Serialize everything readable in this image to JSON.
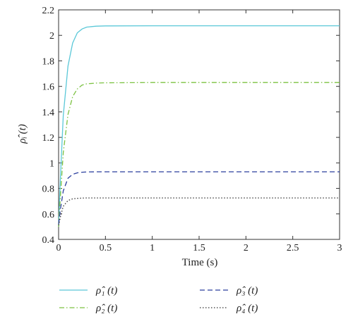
{
  "chart_data": {
    "type": "line",
    "xlabel": "Time (s)",
    "ylabel": "ρ̂ᵢ (t)",
    "xlim": [
      0,
      3
    ],
    "ylim": [
      0.4,
      2.2
    ],
    "xticks": [
      0,
      0.5,
      1,
      1.5,
      2,
      2.5,
      3
    ],
    "xtick_labels": [
      "0",
      "0.5",
      "1",
      "1.5",
      "2",
      "2.5",
      "3"
    ],
    "yticks": [
      0.4,
      0.6,
      0.8,
      1.0,
      1.2,
      1.4,
      1.6,
      1.8,
      2.0,
      2.2
    ],
    "ytick_labels": [
      "0.4",
      "0.6",
      "0.8",
      "1",
      "1.2",
      "1.4",
      "1.6",
      "1.8",
      "2",
      "2.2"
    ],
    "grid": false,
    "legend_placement": "below",
    "series": [
      {
        "name": "ρ̂₁ (t)",
        "color": "#5bc8d8",
        "dash": "solid",
        "x": [
          0,
          0.02,
          0.05,
          0.1,
          0.15,
          0.2,
          0.25,
          0.3,
          0.4,
          0.5,
          1,
          2,
          3
        ],
        "y": [
          0.5,
          0.9,
          1.37,
          1.76,
          1.94,
          2.02,
          2.05,
          2.065,
          2.072,
          2.074,
          2.075,
          2.075,
          2.075
        ]
      },
      {
        "name": "ρ̂₂ (t)",
        "color": "#7cc242",
        "dash": "dashdot",
        "x": [
          0,
          0.02,
          0.05,
          0.1,
          0.15,
          0.2,
          0.25,
          0.3,
          0.4,
          0.5,
          1,
          2,
          3
        ],
        "y": [
          0.5,
          0.75,
          1.08,
          1.38,
          1.52,
          1.58,
          1.61,
          1.62,
          1.626,
          1.628,
          1.63,
          1.63,
          1.63
        ]
      },
      {
        "name": "ρ̂₃ (t)",
        "color": "#2b3f9e",
        "dash": "dashed",
        "x": [
          0,
          0.02,
          0.05,
          0.1,
          0.15,
          0.2,
          0.25,
          0.3,
          0.4,
          0.5,
          1,
          2,
          3
        ],
        "y": [
          0.52,
          0.64,
          0.78,
          0.88,
          0.91,
          0.922,
          0.927,
          0.929,
          0.93,
          0.93,
          0.93,
          0.93,
          0.93
        ]
      },
      {
        "name": "ρ̂₄ (t)",
        "color": "#333333",
        "dash": "dotted",
        "x": [
          0,
          0.02,
          0.05,
          0.1,
          0.15,
          0.2,
          0.25,
          0.3,
          0.4,
          0.5,
          1,
          2,
          3
        ],
        "y": [
          0.51,
          0.58,
          0.66,
          0.705,
          0.718,
          0.722,
          0.724,
          0.725,
          0.725,
          0.725,
          0.725,
          0.725,
          0.725
        ]
      }
    ]
  }
}
